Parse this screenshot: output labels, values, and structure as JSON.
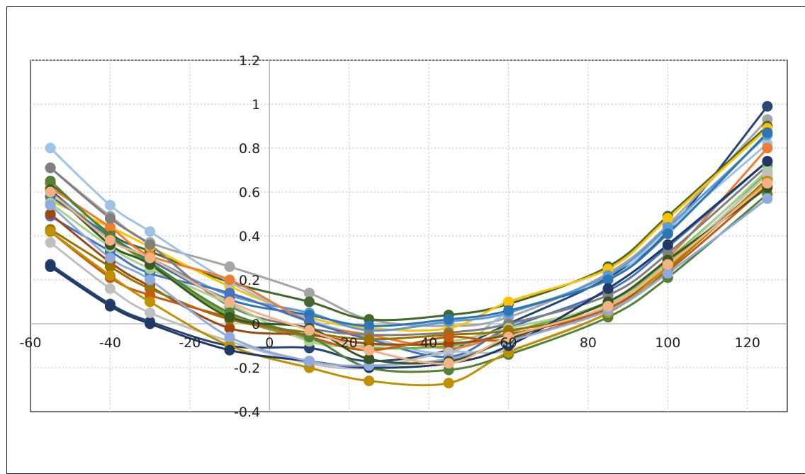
{
  "chart_data": {
    "type": "line",
    "title": "",
    "xlabel": "",
    "ylabel": "",
    "xlim": [
      -60,
      130
    ],
    "ylim": [
      -0.4,
      1.2
    ],
    "x_ticks": [
      "-60",
      "-40",
      "-20",
      "0",
      "20",
      "40",
      "60",
      "80",
      "100",
      "120"
    ],
    "y_ticks": [
      "-0.4",
      "-0.2",
      "0",
      "0.2",
      "0.4",
      "0.6",
      "0.8",
      "1",
      "1.2"
    ],
    "grid": true,
    "legend": "none",
    "x": [
      -55,
      -40,
      -30,
      -10,
      10,
      25,
      45,
      60,
      85,
      100,
      125
    ],
    "series": [
      {
        "color": "#264478",
        "values": [
          0.27,
          0.09,
          0.01,
          -0.1,
          -0.11,
          -0.17,
          -0.12,
          0.0,
          0.21,
          0.42,
          0.99
        ]
      },
      {
        "color": "#A5A5A5",
        "values": [
          0.71,
          0.49,
          0.37,
          0.26,
          0.14,
          0.02,
          -0.01,
          0.03,
          0.23,
          0.45,
          0.93
        ]
      },
      {
        "color": "#43682B",
        "values": [
          0.64,
          0.41,
          0.33,
          0.19,
          0.1,
          0.02,
          0.04,
          0.09,
          0.26,
          0.49,
          0.9
        ]
      },
      {
        "color": "#FFC000",
        "values": [
          0.56,
          0.44,
          0.35,
          0.17,
          0.03,
          -0.02,
          -0.02,
          0.1,
          0.25,
          0.48,
          0.89
        ]
      },
      {
        "color": "#9DC3E6",
        "values": [
          0.8,
          0.54,
          0.42,
          0.19,
          0.02,
          -0.06,
          -0.13,
          0.05,
          0.2,
          0.43,
          0.82
        ]
      },
      {
        "color": "#5B9BD5",
        "values": [
          0.61,
          0.39,
          0.3,
          0.13,
          0.05,
          -0.03,
          0.01,
          0.05,
          0.22,
          0.44,
          0.86
        ]
      },
      {
        "color": "#2E75B6",
        "values": [
          0.58,
          0.4,
          0.29,
          0.11,
          0.04,
          -0.01,
          0.02,
          0.06,
          0.2,
          0.41,
          0.87
        ]
      },
      {
        "color": "#ED7D31",
        "values": [
          0.62,
          0.44,
          0.31,
          0.2,
          0.01,
          -0.05,
          -0.11,
          -0.04,
          0.1,
          0.3,
          0.8
        ]
      },
      {
        "color": "#4472C4",
        "values": [
          0.49,
          0.33,
          0.23,
          0.14,
          0.01,
          -0.07,
          -0.15,
          -0.02,
          0.15,
          0.35,
          0.74
        ]
      },
      {
        "color": "#7F7F7F",
        "values": [
          0.71,
          0.48,
          0.36,
          0.08,
          -0.02,
          -0.05,
          -0.04,
          0.0,
          0.13,
          0.32,
          0.72
        ]
      },
      {
        "color": "#70AD47",
        "values": [
          0.65,
          0.4,
          0.27,
          0.04,
          -0.07,
          -0.11,
          -0.1,
          -0.04,
          0.1,
          0.29,
          0.69
        ]
      },
      {
        "color": "#A9D18E",
        "values": [
          0.55,
          0.35,
          0.25,
          0.09,
          -0.08,
          -0.1,
          -0.08,
          -0.02,
          0.09,
          0.28,
          0.7
        ]
      },
      {
        "color": "#9E480E",
        "values": [
          0.5,
          0.28,
          0.17,
          -0.02,
          -0.05,
          -0.09,
          -0.09,
          -0.05,
          0.07,
          0.27,
          0.65
        ]
      },
      {
        "color": "#997300",
        "values": [
          0.43,
          0.26,
          0.16,
          0.02,
          -0.04,
          -0.07,
          -0.05,
          -0.03,
          0.06,
          0.25,
          0.66
        ]
      },
      {
        "color": "#C55A11",
        "values": [
          0.42,
          0.21,
          0.13,
          0.03,
          -0.06,
          -0.12,
          -0.06,
          -0.07,
          0.07,
          0.24,
          0.63
        ]
      },
      {
        "color": "#BFBFBF",
        "values": [
          0.37,
          0.16,
          0.05,
          -0.08,
          -0.18,
          -0.2,
          -0.13,
          -0.12,
          0.05,
          0.26,
          0.68
        ]
      },
      {
        "color": "#548235",
        "values": [
          0.65,
          0.4,
          0.28,
          0.05,
          -0.06,
          -0.2,
          -0.21,
          -0.14,
          0.03,
          0.21,
          0.59
        ]
      },
      {
        "color": "#BF9000",
        "values": [
          0.42,
          0.22,
          0.1,
          -0.1,
          -0.2,
          -0.26,
          -0.27,
          -0.13,
          0.05,
          0.26,
          0.65
        ]
      },
      {
        "color": "#1F3864",
        "values": [
          0.26,
          0.08,
          0.0,
          -0.12,
          -0.17,
          -0.2,
          -0.18,
          -0.1,
          0.16,
          0.36,
          0.74
        ]
      },
      {
        "color": "#8FAADC",
        "values": [
          0.54,
          0.3,
          0.2,
          -0.06,
          -0.17,
          -0.19,
          -0.16,
          -0.08,
          0.06,
          0.23,
          0.57
        ]
      },
      {
        "color": "#385723",
        "values": [
          0.61,
          0.36,
          0.27,
          0.03,
          -0.02,
          -0.16,
          -0.17,
          -0.07,
          0.1,
          0.29,
          0.62
        ]
      },
      {
        "color": "#F4B183",
        "values": [
          0.6,
          0.38,
          0.3,
          0.1,
          -0.03,
          -0.12,
          -0.18,
          -0.06,
          0.08,
          0.27,
          0.64
        ]
      }
    ]
  }
}
